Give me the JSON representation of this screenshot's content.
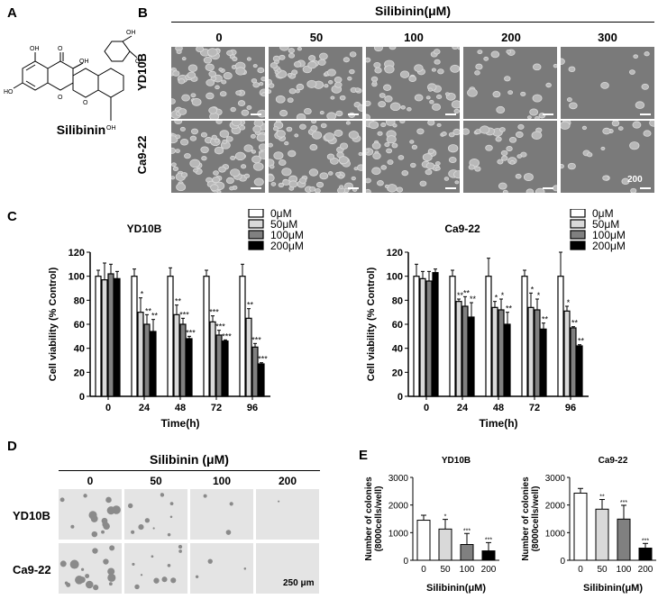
{
  "panel_letters": {
    "a": "A",
    "b": "B",
    "c": "C",
    "d": "D",
    "e": "E"
  },
  "panel_a": {
    "compound": "Silibinin",
    "atoms": [
      "OH",
      "O",
      "HO",
      "OH",
      "OH",
      "O",
      "O",
      "O",
      "OH"
    ]
  },
  "panel_b": {
    "title": "Silibinin(μM)",
    "concentrations": [
      "0",
      "50",
      "100",
      "200",
      "300"
    ],
    "rows": [
      "YD10B",
      "Ca9-22"
    ],
    "scale_label": "200"
  },
  "panel_d": {
    "title": "Silibinin (μM)",
    "concentrations": [
      "0",
      "50",
      "100",
      "200"
    ],
    "rows": [
      "YD10B",
      "Ca9-22"
    ],
    "scale_label": "250 μm"
  },
  "panel_c_common": {
    "ylabel": "Cell viability (% Control)",
    "xlabel": "Time(h)"
  },
  "chart_data": [
    {
      "type": "bar",
      "title": "YD10B",
      "xlabel": "Time(h)",
      "ylabel": "Cell viability (% Control)",
      "categories": [
        "0",
        "24",
        "48",
        "72",
        "96"
      ],
      "ylim": [
        0,
        120
      ],
      "yticks": [
        "0",
        "20",
        "40",
        "60",
        "80",
        "100",
        "120"
      ],
      "legend": "top-right",
      "series": [
        {
          "name": "0μM",
          "color": "#ffffff",
          "values": [
            100,
            100,
            100,
            100,
            100
          ],
          "errors": [
            5,
            6,
            7,
            5,
            10
          ],
          "stars": [
            "",
            "",
            "",
            "",
            ""
          ]
        },
        {
          "name": "50μM",
          "color": "#d9d9d9",
          "values": [
            97,
            70,
            68,
            62,
            65
          ],
          "errors": [
            14,
            12,
            8,
            5,
            8
          ],
          "stars": [
            "",
            "*",
            "**",
            "***",
            "**"
          ]
        },
        {
          "name": "100μM",
          "color": "#808080",
          "values": [
            102,
            60,
            60,
            51,
            41
          ],
          "errors": [
            8,
            8,
            5,
            4,
            3
          ],
          "stars": [
            "",
            "**",
            "***",
            "***",
            "***"
          ]
        },
        {
          "name": "200μM",
          "color": "#000000",
          "values": [
            98,
            54,
            48,
            46,
            27
          ],
          "errors": [
            6,
            10,
            2,
            1,
            1
          ],
          "stars": [
            "",
            "**",
            "***",
            "***",
            "***"
          ]
        }
      ]
    },
    {
      "type": "bar",
      "title": "Ca9-22",
      "xlabel": "Time(h)",
      "ylabel": "Cell viability (% Control)",
      "categories": [
        "0",
        "24",
        "48",
        "72",
        "96"
      ],
      "ylim": [
        0,
        120
      ],
      "yticks": [
        "0",
        "20",
        "40",
        "60",
        "80",
        "100",
        "120"
      ],
      "legend": "top-right",
      "series": [
        {
          "name": "0μM",
          "color": "#ffffff",
          "values": [
            100,
            100,
            100,
            100,
            100
          ],
          "errors": [
            10,
            5,
            15,
            5,
            20
          ],
          "stars": [
            "",
            "",
            "",
            "",
            ""
          ]
        },
        {
          "name": "50μM",
          "color": "#d9d9d9",
          "values": [
            98,
            79,
            74,
            74,
            71
          ],
          "errors": [
            6,
            2,
            5,
            12,
            4
          ],
          "stars": [
            "",
            "**",
            "*",
            "*",
            "*"
          ]
        },
        {
          "name": "100μM",
          "color": "#808080",
          "values": [
            96,
            75,
            72,
            72,
            57
          ],
          "errors": [
            8,
            8,
            9,
            9,
            1
          ],
          "stars": [
            "",
            "**",
            "*",
            "*",
            "**"
          ]
        },
        {
          "name": "200μM",
          "color": "#000000",
          "values": [
            103,
            66,
            60,
            56,
            42
          ],
          "errors": [
            3,
            12,
            10,
            5,
            1
          ],
          "stars": [
            "",
            "**",
            "**",
            "**",
            "**"
          ]
        }
      ]
    },
    {
      "type": "bar",
      "title": "YD10B",
      "xlabel": "Silibinin(μM)",
      "ylabel": "Number of colonies (8000cells/well)",
      "categories": [
        "0",
        "50",
        "100",
        "200"
      ],
      "ylim": [
        0,
        3000
      ],
      "yticks": [
        "0",
        "1000",
        "2000",
        "3000"
      ],
      "colors": [
        "#ffffff",
        "#d9d9d9",
        "#808080",
        "#000000"
      ],
      "values": [
        1450,
        1130,
        570,
        340
      ],
      "errors": [
        180,
        350,
        400,
        300
      ],
      "stars": [
        "",
        "*",
        "***",
        "***"
      ]
    },
    {
      "type": "bar",
      "title": "Ca9-22",
      "xlabel": "Silibinin(μM)",
      "ylabel": "Number of colonies (8000cells/well)",
      "categories": [
        "0",
        "50",
        "100",
        "200"
      ],
      "ylim": [
        0,
        3000
      ],
      "yticks": [
        "0",
        "1000",
        "2000",
        "3000"
      ],
      "colors": [
        "#ffffff",
        "#d9d9d9",
        "#808080",
        "#000000"
      ],
      "values": [
        2430,
        1850,
        1490,
        440
      ],
      "errors": [
        170,
        350,
        500,
        170
      ],
      "stars": [
        "",
        "**",
        "***",
        "***"
      ]
    }
  ]
}
